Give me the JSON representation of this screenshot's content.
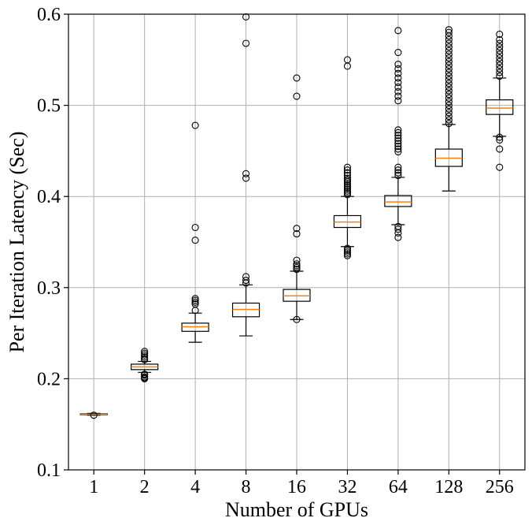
{
  "chart_data": {
    "type": "box",
    "title": "",
    "xlabel": "Number of GPUs",
    "ylabel": "Per Iteration Latency (Sec)",
    "ylim": [
      0.1,
      0.6
    ],
    "yticks": [
      "0.1",
      "0.2",
      "0.3",
      "0.4",
      "0.5",
      "0.6"
    ],
    "grid": true,
    "legend": "none",
    "categories": [
      "1",
      "2",
      "4",
      "8",
      "16",
      "32",
      "64",
      "128",
      "256"
    ],
    "colors": {
      "box": "#000000",
      "median": "#ff7f0e",
      "grid": "#b0b0b0"
    },
    "boxes": [
      {
        "label": "1",
        "whisker_low": 0.16,
        "q1": 0.1605,
        "median": 0.161,
        "q3": 0.1615,
        "whisker_high": 0.162,
        "outliers": [
          0.16
        ]
      },
      {
        "label": "2",
        "whisker_low": 0.207,
        "q1": 0.21,
        "median": 0.213,
        "q3": 0.216,
        "whisker_high": 0.219,
        "outliers": [
          0.2,
          0.201,
          0.202,
          0.204,
          0.205,
          0.221,
          0.222,
          0.224,
          0.226,
          0.228,
          0.23
        ]
      },
      {
        "label": "4",
        "whisker_low": 0.24,
        "q1": 0.252,
        "median": 0.257,
        "q3": 0.261,
        "whisker_high": 0.272,
        "outliers": [
          0.275,
          0.282,
          0.284,
          0.286,
          0.288,
          0.352,
          0.366,
          0.478
        ]
      },
      {
        "label": "8",
        "whisker_low": 0.247,
        "q1": 0.268,
        "median": 0.276,
        "q3": 0.283,
        "whisker_high": 0.303,
        "outliers": [
          0.305,
          0.308,
          0.312,
          0.42,
          0.425,
          0.568,
          0.597
        ]
      },
      {
        "label": "16",
        "whisker_low": 0.265,
        "q1": 0.285,
        "median": 0.291,
        "q3": 0.298,
        "whisker_high": 0.318,
        "outliers": [
          0.265,
          0.32,
          0.322,
          0.324,
          0.326,
          0.33,
          0.359,
          0.365,
          0.51,
          0.53
        ]
      },
      {
        "label": "32",
        "whisker_low": 0.345,
        "q1": 0.366,
        "median": 0.372,
        "q3": 0.379,
        "whisker_high": 0.4,
        "outliers": [
          0.335,
          0.337,
          0.339,
          0.341,
          0.343,
          0.402,
          0.404,
          0.406,
          0.408,
          0.41,
          0.412,
          0.414,
          0.416,
          0.418,
          0.42,
          0.423,
          0.426,
          0.429,
          0.432,
          0.543,
          0.55
        ]
      },
      {
        "label": "64",
        "whisker_low": 0.369,
        "q1": 0.389,
        "median": 0.394,
        "q3": 0.401,
        "whisker_high": 0.421,
        "outliers": [
          0.355,
          0.36,
          0.364,
          0.367,
          0.423,
          0.426,
          0.429,
          0.432,
          0.449,
          0.452,
          0.455,
          0.458,
          0.461,
          0.464,
          0.467,
          0.47,
          0.473,
          0.505,
          0.51,
          0.515,
          0.52,
          0.525,
          0.53,
          0.535,
          0.54,
          0.545,
          0.558,
          0.582
        ]
      },
      {
        "label": "128",
        "whisker_low": 0.406,
        "q1": 0.433,
        "median": 0.442,
        "q3": 0.452,
        "whisker_high": 0.479,
        "outliers": [
          0.48,
          0.484,
          0.488,
          0.492,
          0.496,
          0.5,
          0.504,
          0.508,
          0.512,
          0.516,
          0.52,
          0.524,
          0.528,
          0.532,
          0.536,
          0.54,
          0.544,
          0.548,
          0.552,
          0.556,
          0.56,
          0.564,
          0.568,
          0.572,
          0.576,
          0.58,
          0.583
        ]
      },
      {
        "label": "256",
        "whisker_low": 0.466,
        "q1": 0.49,
        "median": 0.497,
        "q3": 0.506,
        "whisker_high": 0.53,
        "outliers": [
          0.432,
          0.452,
          0.462,
          0.465,
          0.532,
          0.536,
          0.54,
          0.544,
          0.548,
          0.552,
          0.556,
          0.56,
          0.564,
          0.568,
          0.572,
          0.578
        ]
      }
    ]
  }
}
